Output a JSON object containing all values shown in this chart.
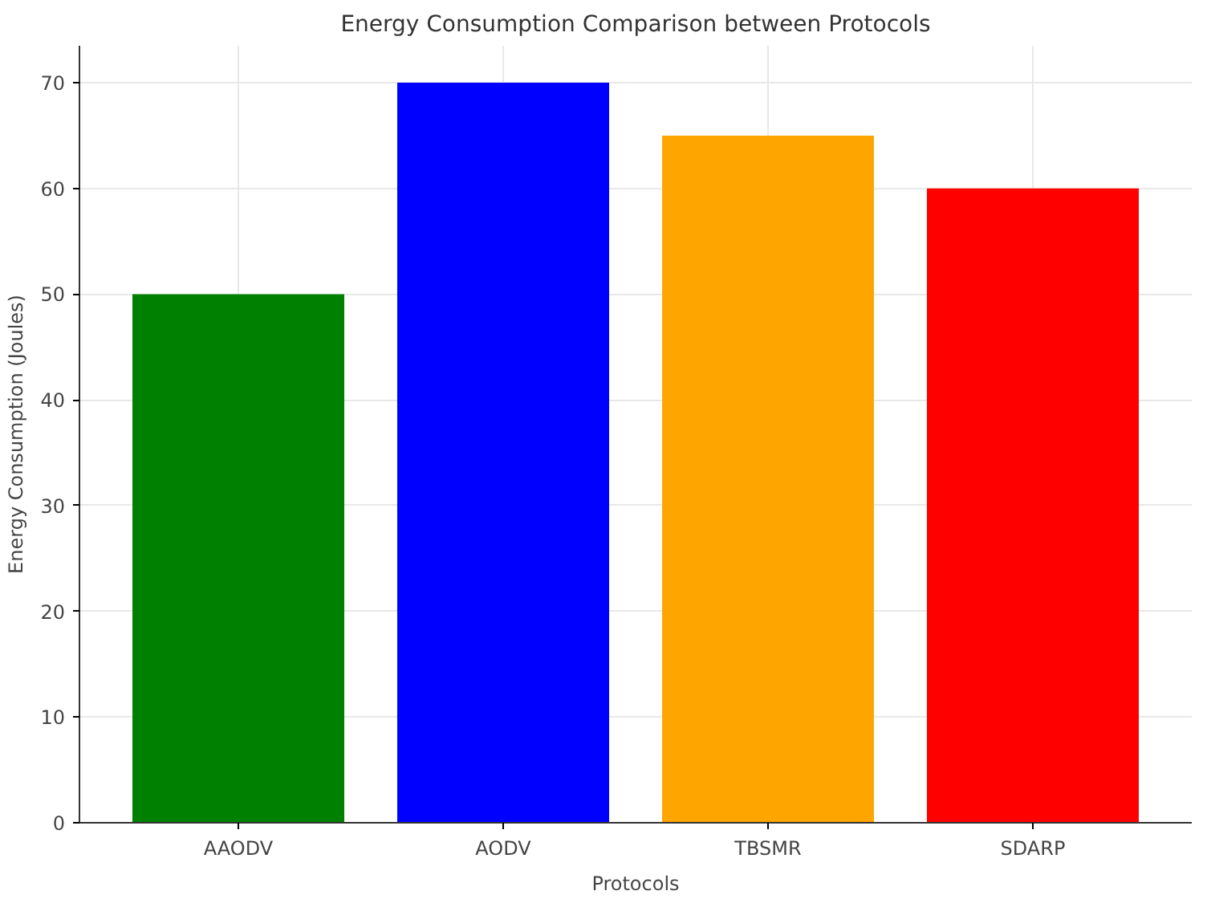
{
  "chart_data": {
    "type": "bar",
    "title": "Energy Consumption Comparison between Protocols",
    "xlabel": "Protocols",
    "ylabel": "Energy Consumption (Joules)",
    "categories": [
      "AAODV",
      "AODV",
      "TBSMR",
      "SDARP"
    ],
    "values": [
      50,
      70,
      65,
      60
    ],
    "colors": [
      "#008000",
      "#0000ff",
      "#ffa500",
      "#ff0000"
    ],
    "ylim": [
      0,
      73.5
    ],
    "yticks": [
      0,
      10,
      20,
      30,
      40,
      50,
      60,
      70
    ],
    "grid": true
  }
}
